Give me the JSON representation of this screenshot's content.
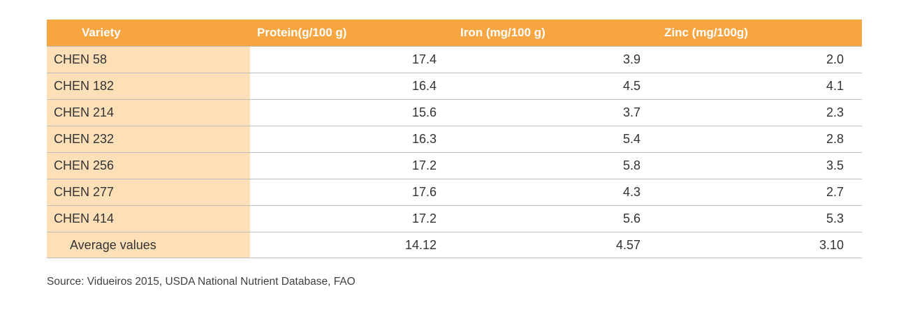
{
  "table": {
    "headers": [
      "Variety",
      "Protein(g/100 g)",
      "Iron (mg/100  g)",
      "Zinc (mg/100g)"
    ],
    "rows": [
      [
        "CHEN 58",
        "17.4",
        "3.9",
        "2.0"
      ],
      [
        "CHEN 182",
        "16.4",
        "4.5",
        "4.1"
      ],
      [
        "CHEN 214",
        "15.6",
        "3.7",
        "2.3"
      ],
      [
        "CHEN 232",
        "16.3",
        "5.4",
        "2.8"
      ],
      [
        "CHEN 256",
        "17.2",
        "5.8",
        "3.5"
      ],
      [
        "CHEN 277",
        "17.6",
        "4.3",
        "2.7"
      ],
      [
        "CHEN 414",
        "17.2",
        "5.6",
        "5.3"
      ],
      [
        "Average values",
        "14.12",
        "4.57",
        "3.10"
      ]
    ]
  },
  "source": "Source: Vidueiros 2015,  USDA National Nutrient  Database, FAO",
  "colors": {
    "header_bg": "#f7a540",
    "first_col_bg": "#fde0b8",
    "row_border": "#bdbdbd"
  }
}
